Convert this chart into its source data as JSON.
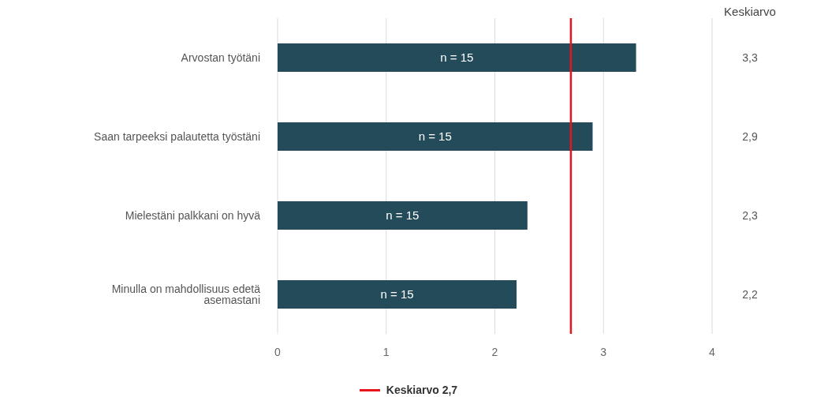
{
  "chart_data": {
    "type": "bar",
    "orientation": "horizontal",
    "categories": [
      "Arvostan työtäni",
      "Saan tarpeeksi palautetta työstäni",
      "Mielestäni palkkani on hyvä",
      "Minulla on mahdollisuus edetä asemastani"
    ],
    "values": [
      3.3,
      2.9,
      2.3,
      2.2
    ],
    "color": "#234b5a",
    "value_labels": [
      "3,3",
      "2,9",
      "2,3",
      "2,2"
    ],
    "xlim": [
      0,
      4
    ],
    "xticks": [
      0,
      1,
      2,
      3,
      4
    ],
    "grid": "x",
    "ref_lines": [
      {
        "axis": "x",
        "value": 2.7,
        "label": "Keskiarvo 2,7",
        "color": "#e8141b"
      }
    ],
    "legend": "bottom",
    "annotations": [
      "Keskiarvo",
      "n = 15",
      "n = 15",
      "n = 15",
      "n = 15"
    ]
  }
}
